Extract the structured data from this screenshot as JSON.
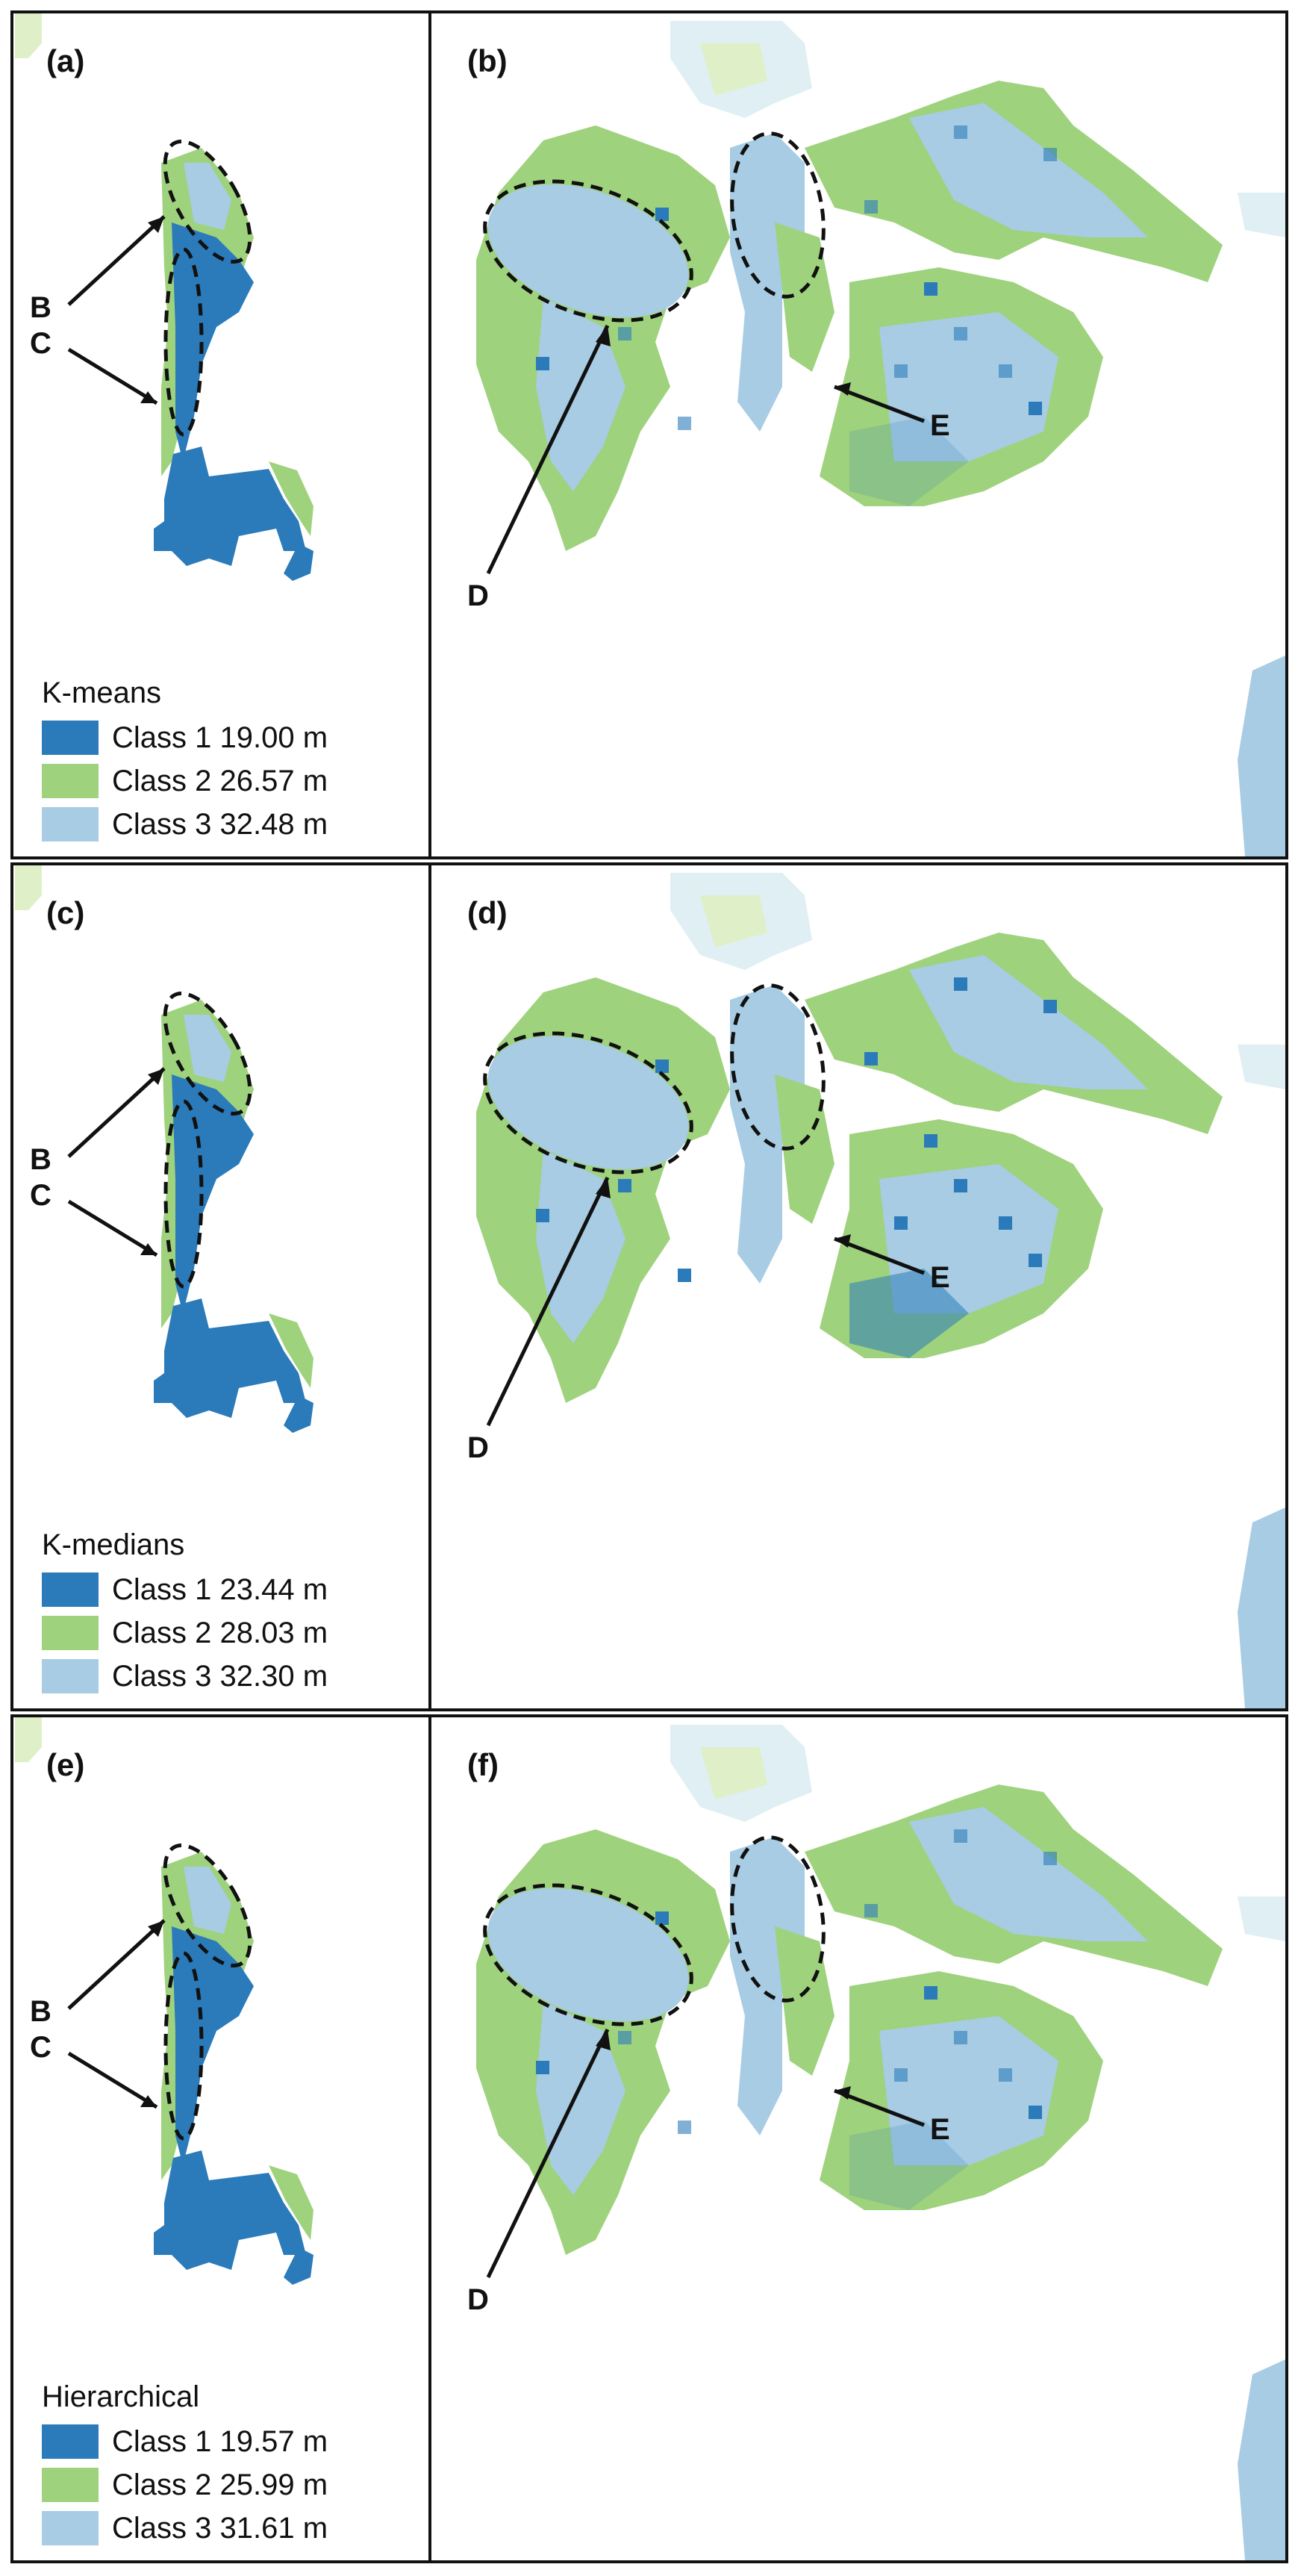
{
  "colors": {
    "class1": "#2b7bba",
    "class2": "#9fd27d",
    "class3": "#a7cce3",
    "faint": "#dfeff3",
    "faint_green": "#dff0c8"
  },
  "panels": [
    {
      "left_label": "(a)",
      "right_label": "(b)",
      "legend": {
        "title": "K-means",
        "items": [
          {
            "label": "Class 1 19.00 m"
          },
          {
            "label": "Class 2 26.57 m"
          },
          {
            "label": "Class 3 32.48 m"
          }
        ]
      },
      "annotations": {
        "b": "B",
        "c": "C",
        "d": "D",
        "e": "E"
      }
    },
    {
      "left_label": "(c)",
      "right_label": "(d)",
      "legend": {
        "title": "K-medians",
        "items": [
          {
            "label": "Class 1 23.44 m"
          },
          {
            "label": "Class 2 28.03 m"
          },
          {
            "label": "Class 3 32.30 m"
          }
        ]
      },
      "annotations": {
        "b": "B",
        "c": "C",
        "d": "D",
        "e": "E"
      }
    },
    {
      "left_label": "(e)",
      "right_label": "(f)",
      "legend": {
        "title": "Hierarchical",
        "items": [
          {
            "label": "Class 1 19.57 m"
          },
          {
            "label": "Class 2 25.99 m"
          },
          {
            "label": "Class 3 31.61 m"
          }
        ]
      },
      "annotations": {
        "b": "B",
        "c": "C",
        "d": "D",
        "e": "E"
      }
    }
  ]
}
